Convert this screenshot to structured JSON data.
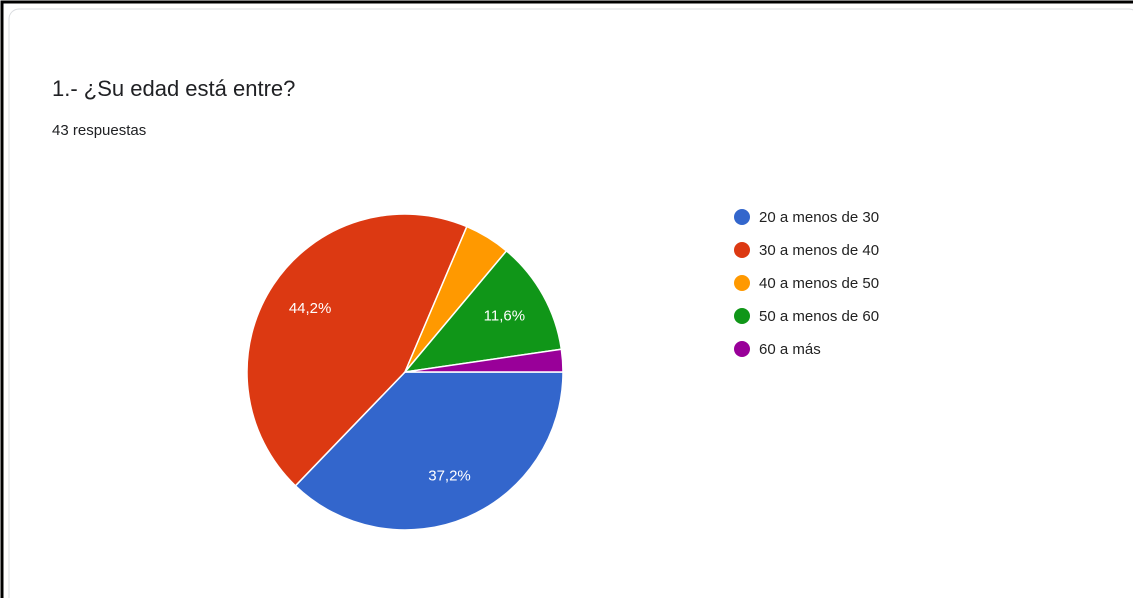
{
  "chart_data": {
    "type": "pie",
    "title": "1.- ¿Su edad está entre?",
    "subtitle": "43 respuestas",
    "categories": [
      "20 a menos de 30",
      "30 a menos de 40",
      "40 a menos de 50",
      "50 a menos de 60",
      "60 a más"
    ],
    "values": [
      37.2,
      44.2,
      4.7,
      11.6,
      2.3
    ],
    "value_labels": [
      "37,2%",
      "44,2%",
      null,
      "11,6%",
      null
    ],
    "colors": [
      "#3366cc",
      "#dc3912",
      "#ff9900",
      "#109618",
      "#990099"
    ],
    "legend": "right"
  }
}
